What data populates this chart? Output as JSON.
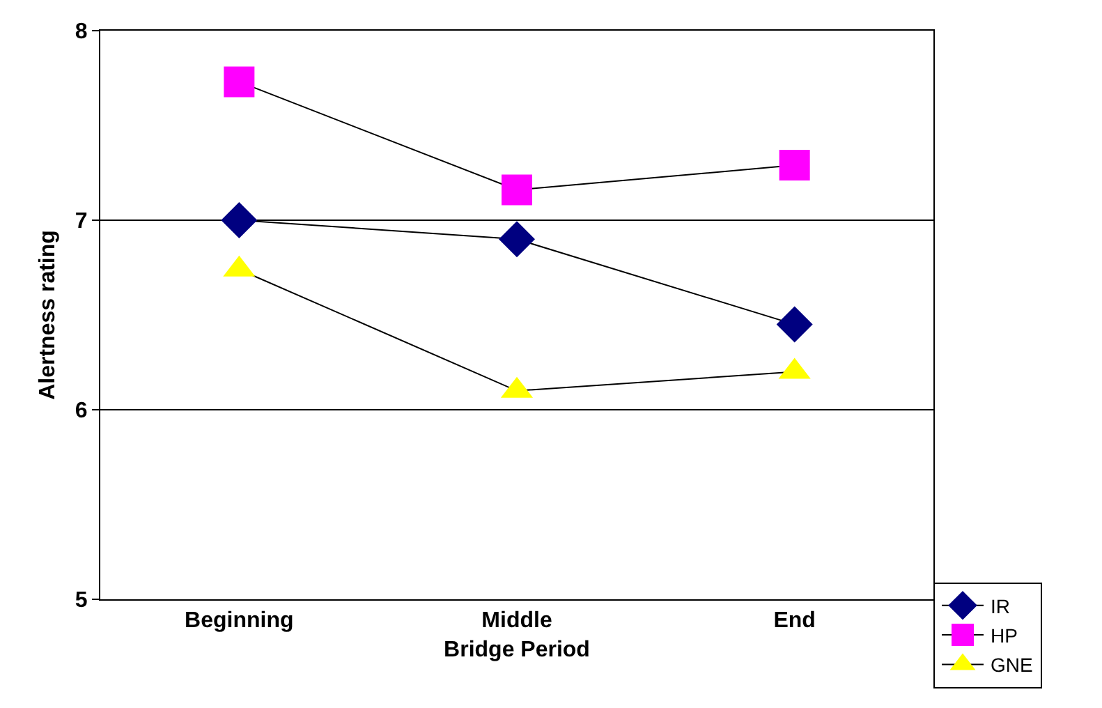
{
  "chart_data": {
    "type": "line",
    "xlabel": "Bridge Period",
    "ylabel": "Alertness rating",
    "categories": [
      "Beginning",
      "Middle",
      "End"
    ],
    "series": [
      {
        "name": "IR",
        "color": "#000080",
        "marker": "diamond",
        "values": [
          7.0,
          6.9,
          6.45
        ]
      },
      {
        "name": "HP",
        "color": "#ff00ff",
        "marker": "square",
        "values": [
          7.73,
          7.16,
          7.29
        ]
      },
      {
        "name": "GNE",
        "color": "#ffff00",
        "marker": "triangle",
        "values": [
          6.74,
          6.1,
          6.2
        ]
      }
    ],
    "ylim": [
      5,
      8
    ],
    "yticks": [
      5,
      6,
      7,
      8
    ],
    "grid": "y",
    "legend": "bottom right",
    "line_style": "solid"
  }
}
